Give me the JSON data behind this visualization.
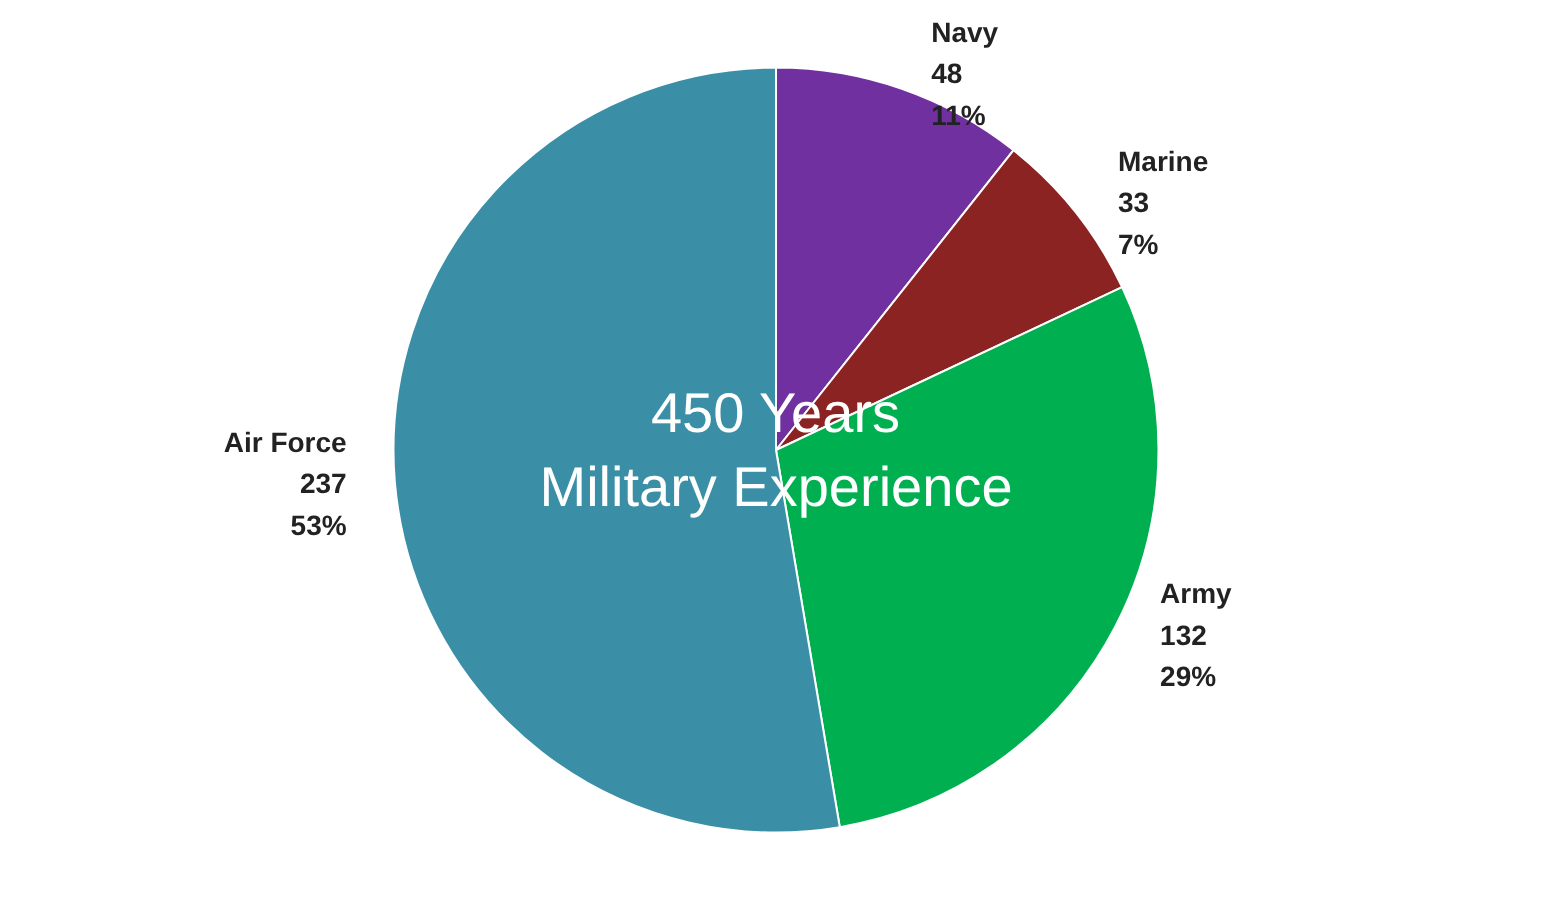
{
  "chart_data": {
    "type": "pie",
    "categories": [
      "Navy",
      "Marine",
      "Army",
      "Air Force"
    ],
    "values": [
      48,
      33,
      132,
      237
    ],
    "colors": [
      "#7030a0",
      "#8b2323",
      "#00b050",
      "#3a8fa6"
    ],
    "value_labels": [
      "48\n11%",
      "33\n7%",
      "132\n29%",
      "237\n53%"
    ],
    "annotations": [
      "450 Years\nMilitary Experience"
    ]
  }
}
